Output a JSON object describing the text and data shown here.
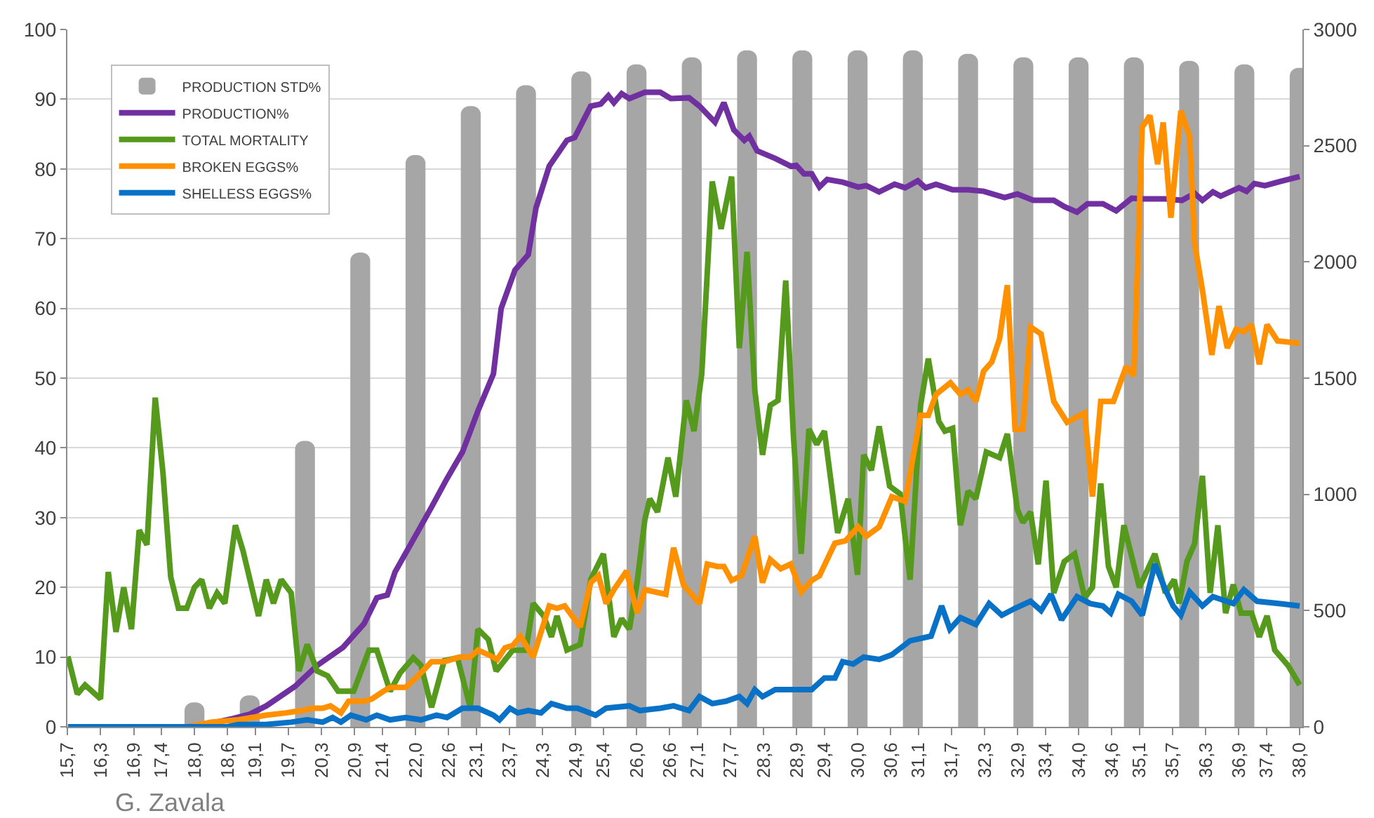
{
  "chart_data": {
    "type": "line",
    "annotations": [
      "G. Zavala"
    ],
    "xlim": [
      15.7,
      38.05
    ],
    "xticks": [
      {
        "value": 15.7,
        "label": "15,7"
      },
      {
        "value": 16.3,
        "label": "16,3"
      },
      {
        "value": 16.9,
        "label": "16,9"
      },
      {
        "value": 17.4,
        "label": "17,4"
      },
      {
        "value": 18.0,
        "label": "18,0"
      },
      {
        "value": 18.6,
        "label": "18,6"
      },
      {
        "value": 19.1,
        "label": "19,1"
      },
      {
        "value": 19.7,
        "label": "19,7"
      },
      {
        "value": 20.3,
        "label": "20,3"
      },
      {
        "value": 20.9,
        "label": "20,9"
      },
      {
        "value": 21.4,
        "label": "21,4"
      },
      {
        "value": 22.0,
        "label": "22,0"
      },
      {
        "value": 22.6,
        "label": "22,6"
      },
      {
        "value": 23.1,
        "label": "23,1"
      },
      {
        "value": 23.7,
        "label": "23,7"
      },
      {
        "value": 24.3,
        "label": "24,3"
      },
      {
        "value": 24.9,
        "label": "24,9"
      },
      {
        "value": 25.4,
        "label": "25,4"
      },
      {
        "value": 26.0,
        "label": "26,0"
      },
      {
        "value": 26.6,
        "label": "26,6"
      },
      {
        "value": 27.1,
        "label": "27,1"
      },
      {
        "value": 27.7,
        "label": "27,7"
      },
      {
        "value": 28.3,
        "label": "28,3"
      },
      {
        "value": 28.9,
        "label": "28,9"
      },
      {
        "value": 29.4,
        "label": "29,4"
      },
      {
        "value": 30.0,
        "label": "30,0"
      },
      {
        "value": 30.6,
        "label": "30,6"
      },
      {
        "value": 31.1,
        "label": "31,1"
      },
      {
        "value": 31.7,
        "label": "31,7"
      },
      {
        "value": 32.3,
        "label": "32,3"
      },
      {
        "value": 32.9,
        "label": "32,9"
      },
      {
        "value": 33.4,
        "label": "33,4"
      },
      {
        "value": 34.0,
        "label": "34,0"
      },
      {
        "value": 34.6,
        "label": "34,6"
      },
      {
        "value": 35.1,
        "label": "35,1"
      },
      {
        "value": 35.7,
        "label": "35,7"
      },
      {
        "value": 36.3,
        "label": "36,3"
      },
      {
        "value": 36.9,
        "label": "36,9"
      },
      {
        "value": 37.4,
        "label": "37,4"
      },
      {
        "value": 38.0,
        "label": "38,0"
      }
    ],
    "ylim": [
      0,
      100
    ],
    "yticks": [
      0,
      10,
      20,
      30,
      40,
      50,
      60,
      70,
      80,
      90,
      100
    ],
    "y2lim": [
      0,
      3000
    ],
    "y2ticks": [
      0,
      500,
      1000,
      1500,
      2000,
      2500,
      3000
    ],
    "grid": "y",
    "legend": "top left",
    "series": [
      {
        "name": "PRODUCTION STD%",
        "type": "bar",
        "color": "#a6a6a6",
        "x": [
          18,
          19,
          20,
          21,
          22,
          23,
          24,
          25,
          26,
          27,
          28,
          29,
          30,
          31,
          32,
          33,
          34,
          35,
          36,
          37,
          38
        ],
        "values": [
          3.5,
          4.5,
          41,
          68,
          82,
          89,
          92,
          94,
          95,
          96,
          97,
          97,
          97,
          97,
          96.5,
          96,
          96,
          96,
          95.5,
          95,
          94.5
        ]
      },
      {
        "name": "PRODUCTION%",
        "color": "#7030a0",
        "x": [
          17.9,
          18.3,
          18.7,
          19.0,
          19.3,
          19.82,
          20.22,
          20.69,
          21.07,
          21.3,
          21.49,
          21.63,
          22.0,
          22.29,
          22.57,
          22.85,
          23.13,
          23.41,
          23.55,
          23.8,
          24.04,
          24.18,
          24.42,
          24.74,
          24.88,
          25.17,
          25.35,
          25.49,
          25.59,
          25.73,
          25.87,
          26.15,
          26.43,
          26.62,
          26.95,
          27.14,
          27.42,
          27.58,
          27.76,
          27.95,
          28.04,
          28.18,
          28.51,
          28.79,
          28.89,
          29.03,
          29.17,
          29.31,
          29.45,
          29.73,
          30.01,
          30.16,
          30.39,
          30.67,
          30.86,
          31.09,
          31.23,
          31.42,
          31.72,
          32.0,
          32.28,
          32.66,
          32.89,
          33.18,
          33.55,
          33.74,
          33.97,
          34.16,
          34.44,
          34.68,
          34.96,
          35.19,
          35.57,
          35.87,
          36.1,
          36.24,
          36.43,
          36.57,
          36.9,
          37.04,
          37.18,
          37.37,
          37.65,
          38.0
        ],
        "values": [
          0,
          0.5,
          1.2,
          1.8,
          3,
          5.8,
          8.8,
          11.4,
          14.8,
          18.5,
          18.9,
          22.2,
          27.4,
          31.5,
          35.6,
          39.4,
          45.3,
          50.6,
          60,
          65.5,
          67.7,
          74.4,
          80.4,
          84.1,
          84.5,
          89,
          89.3,
          90.5,
          89.5,
          90.8,
          90.1,
          91,
          91,
          90.1,
          90.2,
          89,
          86.7,
          89.5,
          85.6,
          84.1,
          84.7,
          82.6,
          81.5,
          80.4,
          80.5,
          79.3,
          79.3,
          77.4,
          78.5,
          78.1,
          77.4,
          77.6,
          76.7,
          77.8,
          77.3,
          78.3,
          77.3,
          77.8,
          77,
          77,
          76.8,
          75.9,
          76.4,
          75.5,
          75.5,
          74.6,
          73.8,
          75,
          75,
          74,
          75.8,
          75.7,
          75.7,
          75.5,
          76.5,
          75.5,
          76.7,
          76.1,
          77.3,
          76.8,
          77.9,
          77.6,
          78.2,
          78.9
        ]
      },
      {
        "name": "TOTAL MORTALITY",
        "color": "#559a1c",
        "x": [
          15.71,
          15.88,
          16.02,
          16.3,
          16.44,
          16.58,
          16.72,
          16.86,
          17.0,
          17.14,
          17.29,
          17.43,
          17.57,
          17.71,
          17.86,
          18.0,
          18.13,
          18.27,
          18.41,
          18.55,
          18.74,
          18.88,
          19.16,
          19.3,
          19.43,
          19.57,
          19.75,
          19.89,
          20.04,
          20.22,
          20.41,
          20.6,
          20.88,
          21.16,
          21.3,
          21.54,
          21.72,
          21.96,
          22.1,
          22.29,
          22.52,
          22.76,
          22.99,
          23.13,
          23.32,
          23.46,
          23.76,
          24.0,
          24.13,
          24.32,
          24.46,
          24.56,
          24.74,
          24.98,
          25.17,
          25.4,
          25.59,
          25.73,
          25.87,
          26.01,
          26.15,
          26.24,
          26.38,
          26.57,
          26.71,
          26.9,
          27.04,
          27.18,
          27.37,
          27.53,
          27.72,
          27.86,
          28.0,
          28.14,
          28.28,
          28.42,
          28.56,
          28.7,
          28.84,
          28.98,
          29.12,
          29.26,
          29.4,
          29.64,
          29.83,
          30.0,
          30.11,
          30.25,
          30.39,
          30.58,
          30.77,
          30.95,
          31.14,
          31.28,
          31.47,
          31.58,
          31.72,
          31.86,
          32.0,
          32.14,
          32.33,
          32.57,
          32.71,
          32.89,
          32.99,
          33.13,
          33.27,
          33.41,
          33.55,
          33.74,
          33.93,
          34.11,
          34.25,
          34.4,
          34.54,
          34.68,
          34.82,
          35.1,
          35.38,
          35.57,
          35.73,
          35.82,
          35.96,
          36.1,
          36.24,
          36.38,
          36.52,
          36.66,
          36.8,
          36.94,
          37.13,
          37.27,
          37.41,
          37.55,
          37.79,
          38.0
        ],
        "values": [
          10.1,
          4.7,
          6,
          4,
          22.2,
          13.6,
          20,
          14,
          28.2,
          26.1,
          47.2,
          36.4,
          21.5,
          17,
          17,
          20,
          21.1,
          17,
          19.2,
          17.7,
          28.9,
          25.2,
          15.9,
          21.1,
          17.7,
          21.1,
          19.2,
          8,
          11.8,
          8,
          7.3,
          5.1,
          5.1,
          11,
          11,
          5.1,
          7.7,
          9.9,
          8.8,
          2.8,
          9.5,
          9.9,
          2.8,
          14,
          12.5,
          8,
          11,
          11,
          17.7,
          15.9,
          12.9,
          15.9,
          11,
          11.8,
          21.1,
          24.8,
          12.9,
          15.5,
          14,
          20.7,
          29.7,
          32.7,
          30.8,
          38.6,
          33,
          46.8,
          42.4,
          50.6,
          78.2,
          71.4,
          78.9,
          54.3,
          68.1,
          48.3,
          39,
          46.1,
          46.8,
          64,
          41.6,
          24.8,
          42.7,
          40.5,
          42.4,
          27.8,
          32.7,
          21.8,
          39,
          36.8,
          43.1,
          34.5,
          33.4,
          21.1,
          46.1,
          52.8,
          43.8,
          42.4,
          42.8,
          28.9,
          33.8,
          32.7,
          39.4,
          38.6,
          42,
          31.2,
          29.3,
          30.8,
          23.3,
          35.3,
          19.2,
          23.7,
          24.8,
          18.5,
          20,
          34.9,
          23,
          20,
          28.9,
          20,
          24.8,
          19.2,
          21.1,
          17.7,
          23.7,
          26.3,
          36,
          19.2,
          28.9,
          16.3,
          20.4,
          16.3,
          16.3,
          12.9,
          15.9,
          11,
          8.8,
          6
        ]
      },
      {
        "name": "BROKEN EGGS%",
        "color": "#ff9000",
        "axis": "y2",
        "x": [
          17.9,
          18.3,
          18.8,
          19.29,
          19.66,
          19.94,
          20.13,
          20.32,
          20.46,
          20.65,
          20.79,
          21.07,
          21.21,
          21.4,
          21.54,
          21.82,
          22.05,
          22.29,
          22.52,
          22.8,
          22.99,
          23.13,
          23.32,
          23.48,
          23.62,
          23.76,
          23.9,
          24.13,
          24.42,
          24.56,
          24.7,
          24.98,
          25.17,
          25.31,
          25.45,
          25.59,
          25.82,
          26.01,
          26.15,
          26.53,
          26.67,
          26.85,
          27.14,
          27.28,
          27.46,
          27.58,
          27.72,
          27.9,
          28.14,
          28.28,
          28.42,
          28.61,
          28.79,
          28.98,
          29.17,
          29.31,
          29.59,
          29.78,
          30.01,
          30.16,
          30.39,
          30.62,
          30.86,
          31.14,
          31.28,
          31.42,
          31.68,
          31.86,
          32.0,
          32.14,
          32.28,
          32.43,
          32.57,
          32.71,
          32.85,
          32.99,
          33.13,
          33.32,
          33.55,
          33.79,
          34.11,
          34.25,
          34.4,
          34.63,
          34.86,
          35.0,
          35.15,
          35.29,
          35.43,
          35.53,
          35.67,
          35.85,
          36.01,
          36.1,
          36.24,
          36.41,
          36.54,
          36.69,
          36.85,
          36.99,
          37.13,
          37.27,
          37.41,
          37.6,
          38.0
        ],
        "values": [
          0,
          20,
          30,
          50,
          60,
          70,
          80,
          80,
          90,
          60,
          110,
          110,
          120,
          150,
          170,
          170,
          220,
          280,
          280,
          300,
          300,
          330,
          310,
          290,
          340,
          350,
          390,
          300,
          520,
          510,
          520,
          430,
          620,
          650,
          530,
          590,
          670,
          490,
          590,
          570,
          770,
          610,
          530,
          700,
          690,
          690,
          630,
          650,
          820,
          620,
          720,
          680,
          700,
          580,
          630,
          650,
          790,
          800,
          860,
          820,
          860,
          990,
          970,
          1340,
          1340,
          1430,
          1480,
          1430,
          1450,
          1400,
          1530,
          1570,
          1670,
          1900,
          1280,
          1280,
          1720,
          1690,
          1400,
          1310,
          1350,
          990,
          1400,
          1400,
          1550,
          1510,
          2580,
          2630,
          2420,
          2600,
          2190,
          2650,
          2540,
          2080,
          1880,
          1600,
          1810,
          1630,
          1710,
          1700,
          1730,
          1560,
          1730,
          1660,
          1650
        ]
      },
      {
        "name": "SHELLESS EGGS%",
        "color": "#0a72c6",
        "axis": "y2",
        "x": [
          15.71,
          18.6,
          18.79,
          19.29,
          19.75,
          20.04,
          20.32,
          20.5,
          20.65,
          20.83,
          21.11,
          21.3,
          21.54,
          21.82,
          22.1,
          22.38,
          22.57,
          22.85,
          23.13,
          23.41,
          23.52,
          23.71,
          23.85,
          24.04,
          24.27,
          24.46,
          24.74,
          24.93,
          25.26,
          25.45,
          25.87,
          26.06,
          26.43,
          26.67,
          26.95,
          27.14,
          27.37,
          27.62,
          27.86,
          28.0,
          28.14,
          28.28,
          28.51,
          28.75,
          28.98,
          29.17,
          29.4,
          29.59,
          29.73,
          29.92,
          30.11,
          30.39,
          30.62,
          30.95,
          31.33,
          31.52,
          31.67,
          31.86,
          32.14,
          32.38,
          32.61,
          32.85,
          33.13,
          33.32,
          33.5,
          33.69,
          33.97,
          34.21,
          34.44,
          34.58,
          34.72,
          34.96,
          35.15,
          35.38,
          35.57,
          35.71,
          35.85,
          36.01,
          36.24,
          36.43,
          36.8,
          36.99,
          37.23,
          37.65,
          38.0
        ],
        "values": [
          0,
          0,
          10,
          10,
          20,
          30,
          20,
          40,
          20,
          50,
          30,
          50,
          30,
          40,
          30,
          50,
          40,
          80,
          80,
          50,
          30,
          80,
          60,
          70,
          60,
          100,
          80,
          80,
          50,
          80,
          90,
          70,
          80,
          90,
          70,
          130,
          100,
          110,
          130,
          100,
          160,
          130,
          160,
          160,
          160,
          160,
          210,
          210,
          280,
          270,
          300,
          290,
          310,
          370,
          390,
          520,
          420,
          470,
          440,
          530,
          480,
          510,
          540,
          500,
          570,
          460,
          560,
          530,
          520,
          490,
          570,
          540,
          480,
          700,
          590,
          520,
          480,
          580,
          520,
          560,
          530,
          590,
          540,
          530,
          520
        ]
      }
    ]
  }
}
